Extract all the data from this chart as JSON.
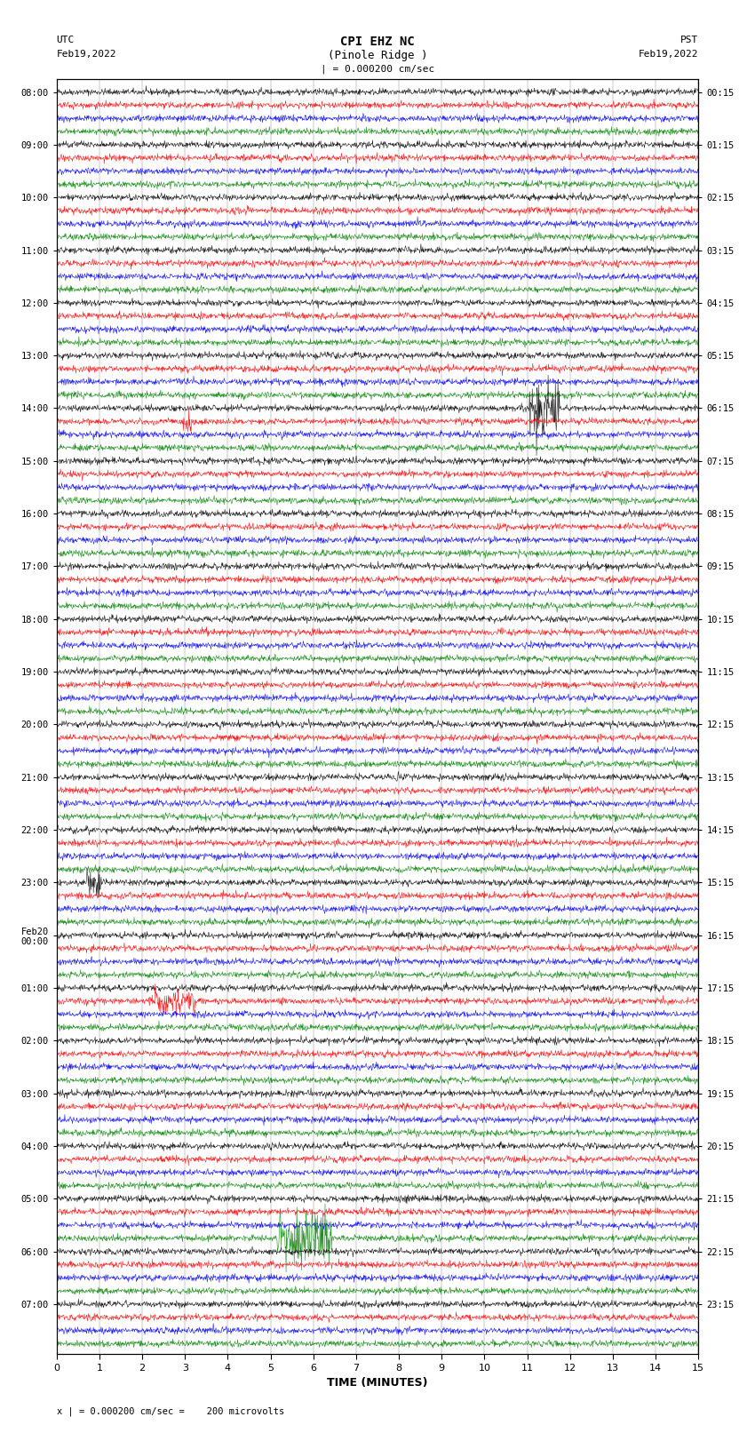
{
  "title_line1": "CPI EHZ NC",
  "title_line2": "(Pinole Ridge )",
  "scale_text": "| = 0.000200 cm/sec",
  "footer_text": "x | = 0.000200 cm/sec =    200 microvolts",
  "left_header": "UTC",
  "left_date": "Feb19,2022",
  "right_header": "PST",
  "right_date": "Feb19,2022",
  "xlabel": "TIME (MINUTES)",
  "xmin": 0,
  "xmax": 15,
  "background_color": "#ffffff",
  "trace_colors": [
    "black",
    "red",
    "blue",
    "green"
  ],
  "utc_labels": [
    "08:00",
    "09:00",
    "10:00",
    "11:00",
    "12:00",
    "13:00",
    "14:00",
    "15:00",
    "16:00",
    "17:00",
    "18:00",
    "19:00",
    "20:00",
    "21:00",
    "22:00",
    "23:00",
    "Feb20\n00:00",
    "01:00",
    "02:00",
    "03:00",
    "04:00",
    "05:00",
    "06:00",
    "07:00"
  ],
  "pst_labels": [
    "00:15",
    "01:15",
    "02:15",
    "03:15",
    "04:15",
    "05:15",
    "06:15",
    "07:15",
    "08:15",
    "09:15",
    "10:15",
    "11:15",
    "12:15",
    "13:15",
    "14:15",
    "15:15",
    "16:15",
    "17:15",
    "18:15",
    "19:15",
    "20:15",
    "21:15",
    "22:15",
    "23:15"
  ],
  "n_traces_per_hour": 4,
  "n_hours": 24,
  "noise_scale": 0.3,
  "seed": 42
}
